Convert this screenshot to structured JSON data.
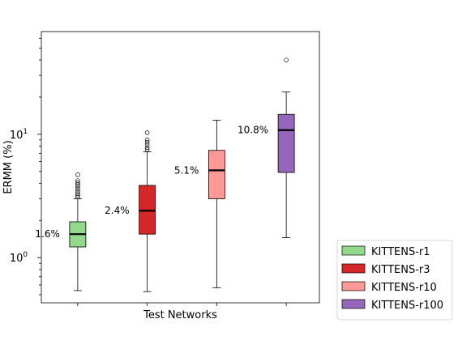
{
  "chart_data": {
    "type": "box",
    "xlabel": "Test Networks",
    "ylabel": "ERMM (%)",
    "yscale": "log",
    "ylim": [
      0.43,
      68
    ],
    "y_ticks": [
      {
        "value": 1,
        "base": "10",
        "exp": "0"
      },
      {
        "value": 10,
        "base": "10",
        "exp": "1"
      }
    ],
    "legend_position": "outside-bottom-right",
    "series": [
      {
        "name": "KITTENS-r1",
        "color": "#93d98b",
        "whisker_low": 0.54,
        "q1": 1.22,
        "median": 1.55,
        "q3": 1.95,
        "whisker_high": 3.0,
        "outliers": [
          3.1,
          3.2,
          3.3,
          3.45,
          3.6,
          3.75,
          3.9,
          4.05,
          4.2,
          4.7
        ],
        "median_label": "1.6%"
      },
      {
        "name": "KITTENS-r3",
        "color": "#d62728",
        "whisker_low": 0.53,
        "q1": 1.55,
        "median": 2.4,
        "q3": 3.85,
        "whisker_high": 7.2,
        "outliers": [
          7.5,
          7.8,
          8.2,
          8.6,
          9.0,
          10.3
        ],
        "median_label": "2.4%"
      },
      {
        "name": "KITTENS-r10",
        "color": "#ff9896",
        "whisker_low": 0.57,
        "q1": 3.0,
        "median": 5.1,
        "q3": 7.4,
        "whisker_high": 13.0,
        "outliers": [],
        "median_label": "5.1%"
      },
      {
        "name": "KITTENS-r100",
        "color": "#9467bd",
        "whisker_low": 1.45,
        "q1": 4.9,
        "median": 10.8,
        "q3": 14.5,
        "whisker_high": 22.0,
        "outliers": [
          40.0
        ],
        "median_label": "10.8%"
      }
    ]
  }
}
